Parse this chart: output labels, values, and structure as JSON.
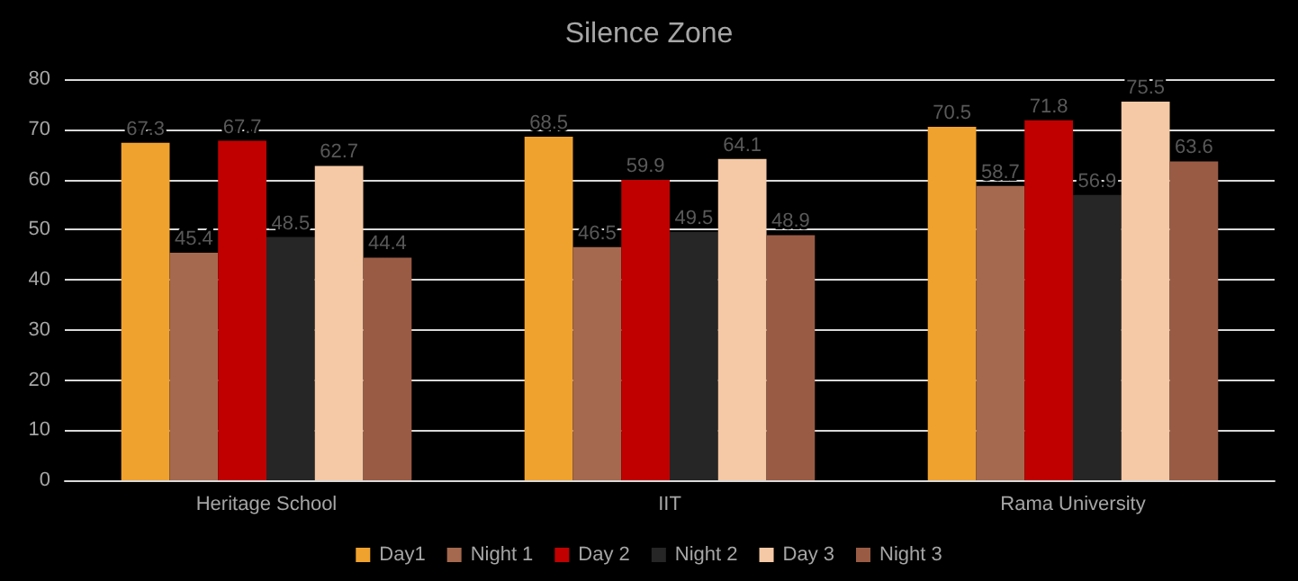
{
  "chart_data": {
    "type": "bar",
    "title": "Silence Zone",
    "categories": [
      "Heritage School",
      "IIT",
      "Rama University"
    ],
    "series": [
      {
        "name": "Day1",
        "color": "#f0a22e",
        "values": [
          67.3,
          68.5,
          70.5
        ]
      },
      {
        "name": "Night 1",
        "color": "#a5694f",
        "values": [
          45.4,
          46.5,
          58.7
        ]
      },
      {
        "name": "Day 2",
        "color": "#c00000",
        "values": [
          67.7,
          59.9,
          71.8
        ]
      },
      {
        "name": "Night 2",
        "color": "#262626",
        "values": [
          48.5,
          49.5,
          56.9
        ]
      },
      {
        "name": "Day 3",
        "color": "#f5c9a5",
        "values": [
          62.7,
          64.1,
          75.5
        ]
      },
      {
        "name": "Night 3",
        "color": "#9a5b45",
        "values": [
          44.4,
          48.9,
          63.6
        ]
      }
    ],
    "ylim": [
      0,
      80
    ],
    "yticks": [
      0,
      10,
      20,
      30,
      40,
      50,
      60,
      70,
      80
    ],
    "grid": "y",
    "legend": "bottom",
    "data_labels": true
  }
}
